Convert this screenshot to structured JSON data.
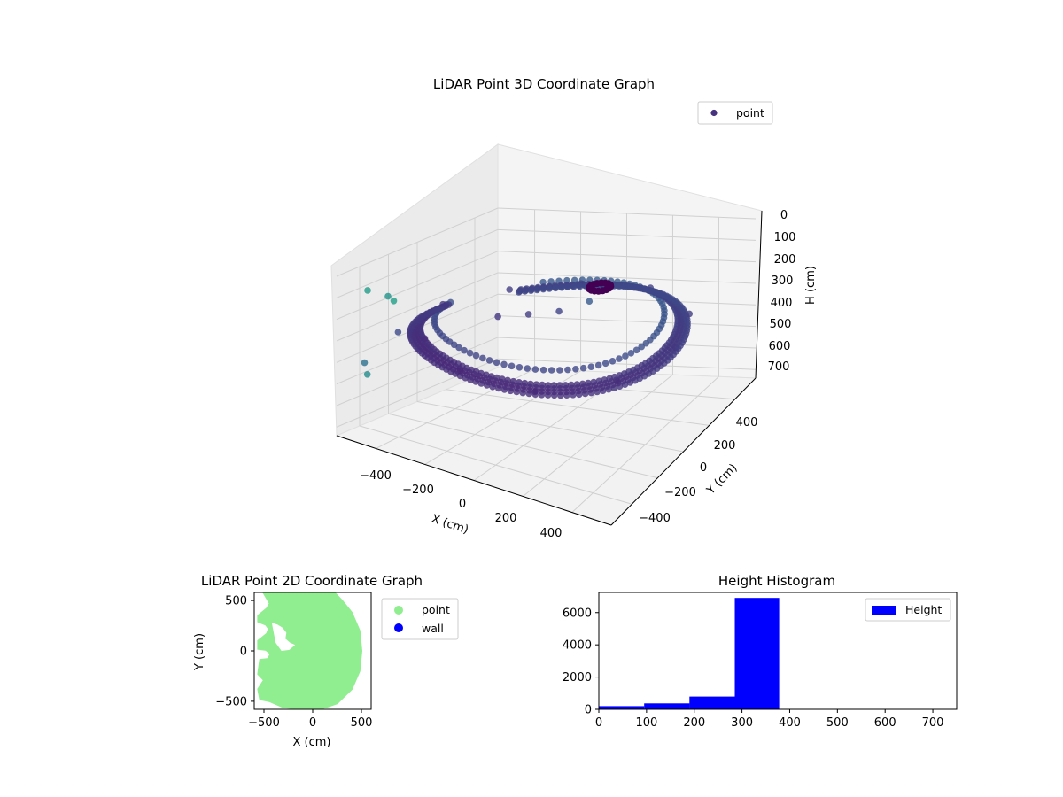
{
  "chart_data": [
    {
      "type": "scatter",
      "projection": "3d",
      "title": "LiDAR Point 3D Coordinate Graph",
      "xlabel": "X (cm)",
      "ylabel": "Y (cm)",
      "zlabel": "H (cm)",
      "x_ticks": [
        "−400",
        "−200",
        "0",
        "200",
        "400"
      ],
      "y_ticks": [
        "−400",
        "−200",
        "0",
        "200",
        "400"
      ],
      "z_ticks": [
        "0",
        "100",
        "200",
        "300",
        "400",
        "500",
        "600",
        "700"
      ],
      "xlim": [
        -560,
        560
      ],
      "ylim": [
        -560,
        560
      ],
      "zlim": [
        0,
        740
      ],
      "z_inverted": true,
      "grid": true,
      "legend": {
        "placement": "upper-right",
        "entries": [
          "point"
        ]
      },
      "colormap": "viridis",
      "colors": {
        "marker_legend": "#46327e",
        "pane": "#f2f2f2",
        "grid": "#d0d0d0"
      },
      "series": [
        {
          "name": "point",
          "description_points": [
            {
              "x": -500,
              "y": 80,
              "h": 300
            },
            {
              "x": -480,
              "y": -120,
              "h": 310
            },
            {
              "x": -350,
              "y": -300,
              "h": 300
            },
            {
              "x": -100,
              "y": -480,
              "h": 300
            },
            {
              "x": 200,
              "y": -470,
              "h": 300
            },
            {
              "x": 420,
              "y": -250,
              "h": 300
            },
            {
              "x": 500,
              "y": 50,
              "h": 300
            },
            {
              "x": 420,
              "y": 300,
              "h": 300
            },
            {
              "x": 150,
              "y": 480,
              "h": 300
            },
            {
              "x": -150,
              "y": 480,
              "h": 300
            },
            {
              "x": -380,
              "y": 350,
              "h": 300
            },
            {
              "x": -150,
              "y": 100,
              "h": 290
            },
            {
              "x": -50,
              "y": 150,
              "h": 280
            },
            {
              "x": 50,
              "y": 200,
              "h": 240
            },
            {
              "x": -480,
              "y": -480,
              "h": 60
            },
            {
              "x": -420,
              "y": -440,
              "h": 80
            },
            {
              "x": -350,
              "y": -520,
              "h": 50
            },
            {
              "x": -540,
              "y": -400,
              "h": 440
            },
            {
              "x": -540,
              "y": -380,
              "h": 500
            },
            {
              "x": -520,
              "y": -200,
              "h": 350
            },
            {
              "x": -250,
              "y": 50,
              "h": 300
            }
          ]
        }
      ]
    },
    {
      "type": "scatter",
      "title": "LiDAR Point 2D Coordinate Graph",
      "xlabel": "X (cm)",
      "ylabel": "Y (cm)",
      "x_ticks": [
        "−500",
        "0",
        "500"
      ],
      "y_ticks": [
        "−500",
        "0",
        "500"
      ],
      "xlim": [
        -600,
        600
      ],
      "ylim": [
        -580,
        580
      ],
      "legend": {
        "placement": "outside-right",
        "entries": [
          "point",
          "wall"
        ]
      },
      "colors": {
        "point": "#90ee90",
        "wall": "#0000ff"
      },
      "series": [
        {
          "name": "point",
          "outline": [
            [
              -530,
              620
            ],
            [
              -500,
              570
            ],
            [
              -470,
              520
            ],
            [
              -440,
              470
            ],
            [
              -470,
              420
            ],
            [
              -560,
              350
            ],
            [
              -560,
              290
            ],
            [
              -480,
              260
            ],
            [
              -450,
              220
            ],
            [
              -470,
              170
            ],
            [
              -560,
              100
            ],
            [
              -560,
              20
            ],
            [
              -480,
              10
            ],
            [
              -430,
              -30
            ],
            [
              -460,
              -80
            ],
            [
              -540,
              -90
            ],
            [
              -560,
              -230
            ],
            [
              -500,
              -290
            ],
            [
              -560,
              -380
            ],
            [
              -540,
              -480
            ],
            [
              -440,
              -500
            ],
            [
              -300,
              -560
            ],
            [
              -100,
              -580
            ],
            [
              100,
              -570
            ],
            [
              250,
              -520
            ],
            [
              400,
              -380
            ],
            [
              480,
              -200
            ],
            [
              500,
              0
            ],
            [
              480,
              200
            ],
            [
              400,
              380
            ],
            [
              300,
              500
            ],
            [
              200,
              600
            ],
            [
              -450,
              620
            ]
          ],
          "notch": [
            [
              -420,
              280
            ],
            [
              -360,
              260
            ],
            [
              -310,
              230
            ],
            [
              -270,
              180
            ],
            [
              -280,
              120
            ],
            [
              -230,
              80
            ],
            [
              -180,
              60
            ],
            [
              -240,
              10
            ],
            [
              -320,
              0
            ],
            [
              -380,
              80
            ],
            [
              -400,
              180
            ]
          ]
        },
        {
          "name": "wall",
          "values": []
        }
      ]
    },
    {
      "type": "bar",
      "title": "Height Histogram",
      "xlabel": "",
      "ylabel": "",
      "x_ticks": [
        "0",
        "100",
        "200",
        "300",
        "400",
        "500",
        "600",
        "700"
      ],
      "y_ticks": [
        "0",
        "2000",
        "4000",
        "6000"
      ],
      "xlim": [
        0,
        750
      ],
      "ylim": [
        0,
        7250
      ],
      "legend": {
        "placement": "upper-right",
        "entries": [
          "Height"
        ]
      },
      "colors": {
        "bar": "#0000ff"
      },
      "bins": [
        {
          "start": 0,
          "end": 95,
          "count": 200
        },
        {
          "start": 95,
          "end": 190,
          "count": 370
        },
        {
          "start": 190,
          "end": 285,
          "count": 790
        },
        {
          "start": 285,
          "end": 378,
          "count": 6910
        }
      ],
      "series": [
        {
          "name": "Height",
          "values": [
            200,
            370,
            790,
            6910
          ]
        }
      ]
    }
  ]
}
